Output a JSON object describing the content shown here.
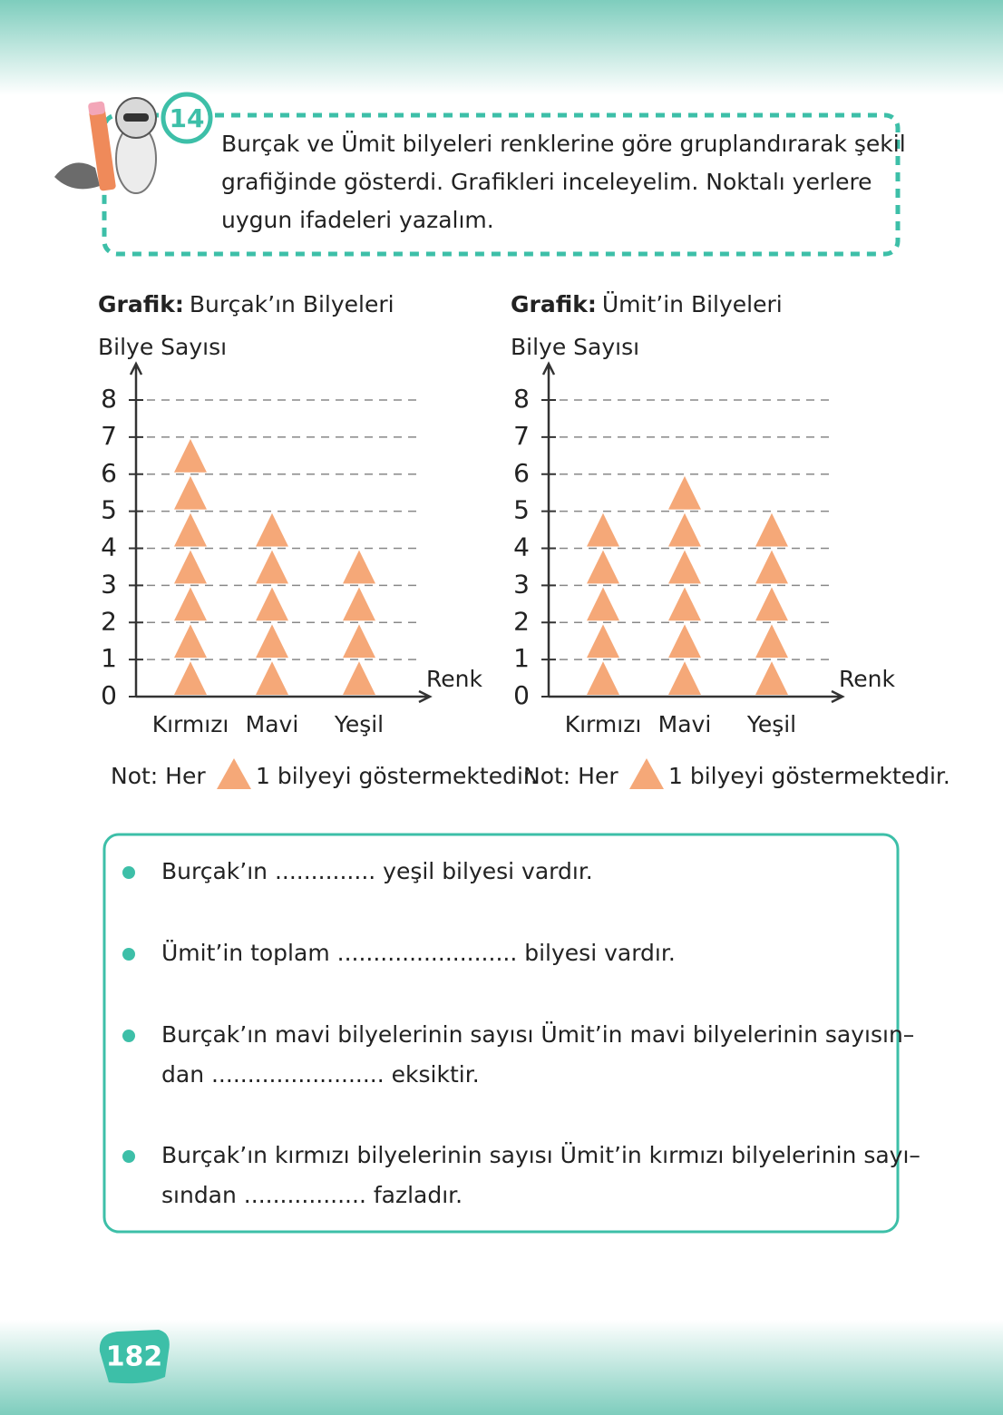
{
  "question_number": "14",
  "instructions": [
    "Burçak ve Ümit bilyeleri renklerine göre gruplandırarak şekil",
    "grafiğinde gösterdi. Grafikleri inceleyelim. Noktalı yerlere",
    "uygun ifadeleri yazalım."
  ],
  "chart_data": [
    {
      "type": "pictograph",
      "title_prefix": "Grafik:",
      "title": "Burçak’ın Bilyeleri",
      "ylabel": "Bilye Sayısı",
      "xlabel": "Renk",
      "categories": [
        "Kırmızı",
        "Mavi",
        "Yeşil"
      ],
      "values": [
        7,
        5,
        4
      ],
      "color": "#f5a878",
      "ylim": [
        0,
        8
      ],
      "yticks": [
        0,
        1,
        2,
        3,
        4,
        5,
        6,
        7,
        8
      ],
      "grid": true,
      "note_prefix": "Not: Her",
      "note_suffix": "1 bilyeyi göstermektedir."
    },
    {
      "type": "pictograph",
      "title_prefix": "Grafik:",
      "title": "Ümit’in Bilyeleri",
      "ylabel": "Bilye Sayısı",
      "xlabel": "Renk",
      "categories": [
        "Kırmızı",
        "Mavi",
        "Yeşil"
      ],
      "values": [
        5,
        6,
        5
      ],
      "color": "#f5a878",
      "ylim": [
        0,
        8
      ],
      "yticks": [
        0,
        1,
        2,
        3,
        4,
        5,
        6,
        7,
        8
      ],
      "grid": true,
      "note_prefix": "Not: Her",
      "note_suffix": "1 bilyeyi göstermektedir."
    }
  ],
  "questions": [
    [
      "Burçak’ın .............. yeşil bilyesi vardır."
    ],
    [
      "Ümit’in toplam ......................... bilyesi vardır."
    ],
    [
      "Burçak’ın mavi bilyelerinin sayısı Ümit’in mavi bilyelerinin sayısın–",
      "dan ........................ eksiktir."
    ],
    [
      "Burçak’ın kırmızı bilyelerinin sayısı Ümit’in kırmızı bilyelerinin sayı–",
      "sından ................. fazladır."
    ]
  ],
  "page_number": "182"
}
